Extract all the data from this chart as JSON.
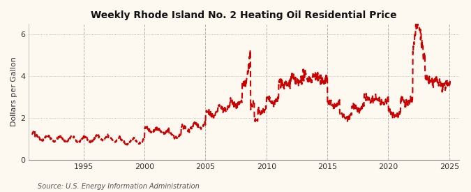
{
  "title": "Weekly Rhode Island No. 2 Heating Oil Residential Price",
  "ylabel": "Dollars per Gallon",
  "source": "Source: U.S. Energy Information Administration",
  "background_color": "#fef9f0",
  "line_color": "#cc0000",
  "ylim": [
    0,
    6.5
  ],
  "yticks": [
    0,
    2,
    4,
    6
  ],
  "xlim_start": 1990.5,
  "xlim_end": 2025.8,
  "xticks": [
    1995,
    2000,
    2005,
    2010,
    2015,
    2020,
    2025
  ],
  "title_fontsize": 10,
  "ylabel_fontsize": 8,
  "source_fontsize": 7
}
